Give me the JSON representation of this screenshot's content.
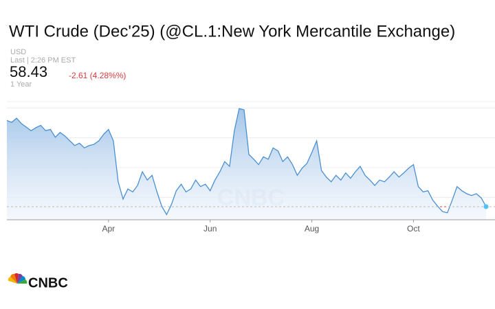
{
  "chart_data": {
    "type": "area",
    "title": "WTI Crude (Dec'25) (@CL.1:New York Mercantile Exchange)",
    "currency": "USD",
    "last_time": "Last | 2:26 PM EST",
    "price": 58.43,
    "change": "-2.61 (4.28%%)",
    "range": "1 Year",
    "watermark": "CNBC",
    "logo": "CNBC",
    "color": "#4a8fd0",
    "categories": [
      null,
      null,
      null,
      null,
      null,
      null,
      null,
      null,
      null,
      null,
      null,
      null,
      null,
      null,
      null,
      null,
      null,
      null,
      null,
      null,
      null,
      "Apr",
      null,
      null,
      null,
      null,
      null,
      null,
      null,
      null,
      null,
      null,
      null,
      null,
      null,
      null,
      null,
      null,
      null,
      null,
      null,
      null,
      "Jun",
      null,
      null,
      null,
      null,
      null,
      null,
      null,
      null,
      null,
      null,
      null,
      null,
      null,
      null,
      null,
      null,
      null,
      null,
      null,
      null,
      "Aug",
      null,
      null,
      null,
      null,
      null,
      null,
      null,
      null,
      null,
      null,
      null,
      null,
      null,
      null,
      null,
      null,
      null,
      null,
      null,
      null,
      "Oct",
      null,
      null,
      null,
      null,
      null,
      null,
      null,
      null,
      null,
      null,
      null,
      null,
      null,
      null,
      null
    ],
    "values": [
      72.9,
      72.6,
      73.3,
      72.4,
      71.8,
      71.2,
      71.7,
      72.1,
      71.2,
      71.4,
      70.1,
      70.9,
      70.3,
      69.5,
      68.7,
      69.1,
      68.3,
      68.7,
      68.9,
      69.5,
      70.6,
      71.4,
      69.5,
      62.6,
      59.7,
      61.4,
      60.9,
      62.0,
      64.3,
      62.9,
      63.7,
      60.9,
      58.5,
      57.1,
      58.8,
      61.1,
      62.2,
      60.9,
      61.4,
      62.9,
      61.8,
      62.2,
      61.1,
      62.9,
      64.3,
      66.0,
      65.2,
      71.2,
      74.9,
      74.7,
      67.2,
      66.4,
      65.5,
      66.8,
      66.4,
      68.3,
      67.8,
      66.0,
      66.8,
      65.5,
      63.7,
      64.9,
      65.7,
      67.5,
      69.5,
      64.5,
      63.4,
      62.6,
      63.7,
      62.9,
      64.1,
      63.2,
      64.3,
      65.2,
      63.7,
      62.9,
      62.0,
      62.9,
      62.6,
      63.4,
      64.3,
      63.4,
      64.1,
      64.9,
      65.5,
      61.8,
      60.9,
      61.1,
      59.5,
      58.5,
      57.6,
      57.4,
      59.5,
      61.8,
      61.1,
      60.6,
      60.3,
      60.6,
      59.9,
      58.43
    ],
    "ylim": [
      56,
      77
    ],
    "yticks": [
      60,
      65,
      70,
      75
    ],
    "grid": true
  }
}
